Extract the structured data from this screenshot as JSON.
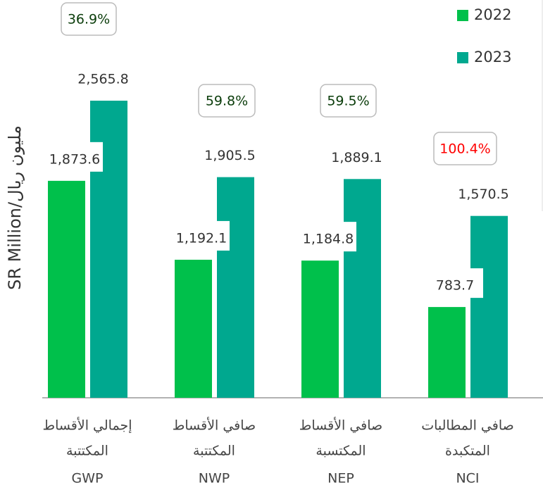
{
  "chart_data": {
    "type": "bar",
    "y_axis_label": "SR Million/مليون ريال",
    "categories": [
      "GWP",
      "NWP",
      "NEP",
      "NCI"
    ],
    "category_names": [
      [
        "إجمالي الأقساط",
        "المكتتبة"
      ],
      [
        "صافي الأقساط",
        "المكتتبة"
      ],
      [
        "صافي الأقساط",
        "المكتسبة"
      ],
      [
        "صافي المطالبات",
        "المتكبدة"
      ]
    ],
    "series": [
      {
        "name": "2022",
        "color": "#00c04b",
        "values": [
          1873.6,
          1192.1,
          1184.8,
          783.7
        ],
        "value_labels": [
          "1,873.6",
          "1,192.1",
          "1,184.8",
          "783.7"
        ]
      },
      {
        "name": "2023",
        "color": "#00a88f",
        "values": [
          2565.8,
          1905.5,
          1889.1,
          1570.5
        ],
        "value_labels": [
          "2,565.8",
          "1,905.5",
          "1,889.1",
          "1,570.5"
        ]
      }
    ],
    "annotations": [
      {
        "text": "36.9%",
        "color": "#0b3d0b"
      },
      {
        "text": "59.8%",
        "color": "#0b3d0b"
      },
      {
        "text": "59.5%",
        "color": "#0b3d0b"
      },
      {
        "text": "100.4%",
        "color": "#ff0000"
      }
    ]
  }
}
